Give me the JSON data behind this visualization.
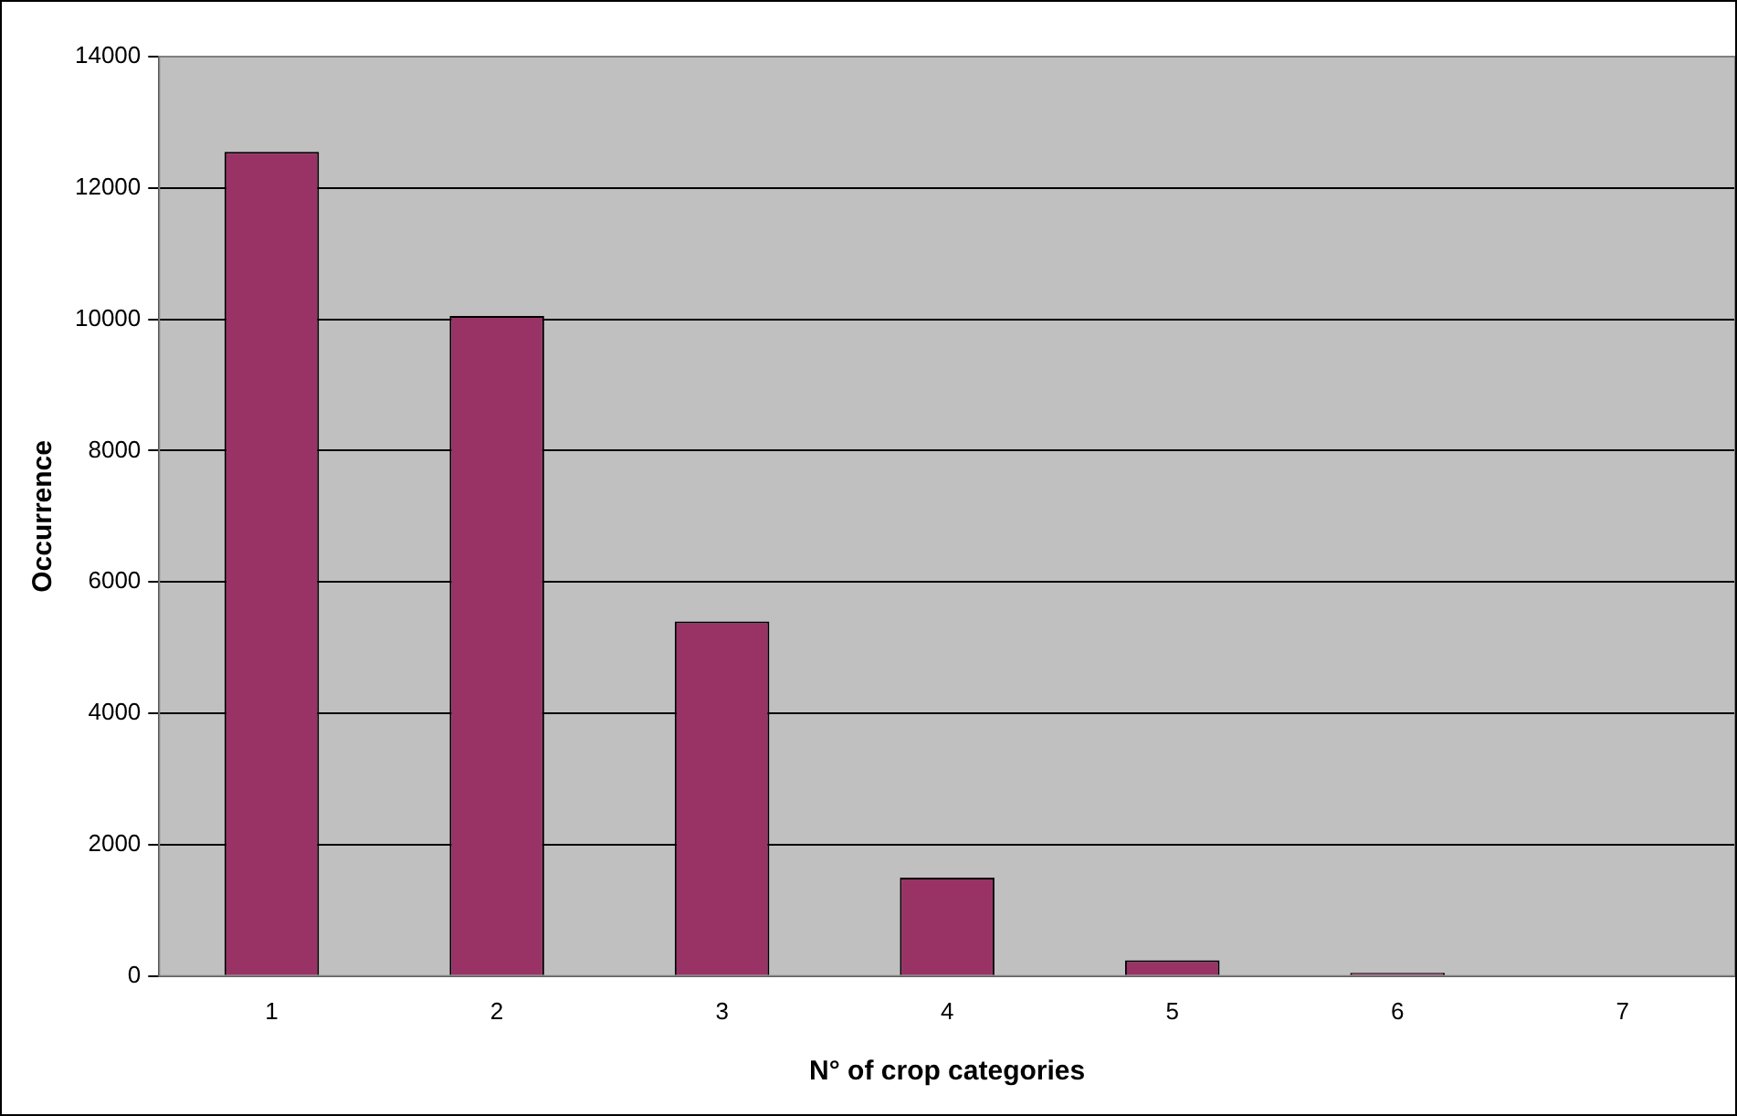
{
  "chart_data": {
    "type": "bar",
    "xlabel": "N° of crop categories",
    "ylabel": "Occurrence",
    "categories": [
      "1",
      "2",
      "3",
      "4",
      "5",
      "6",
      "7"
    ],
    "values": [
      12550,
      10050,
      5400,
      1500,
      240,
      50,
      0
    ],
    "color": "#993366",
    "ylim": [
      0,
      14000
    ],
    "yticks": [
      0,
      2000,
      4000,
      6000,
      8000,
      10000,
      12000,
      14000
    ],
    "grid": "y",
    "legend": false
  }
}
